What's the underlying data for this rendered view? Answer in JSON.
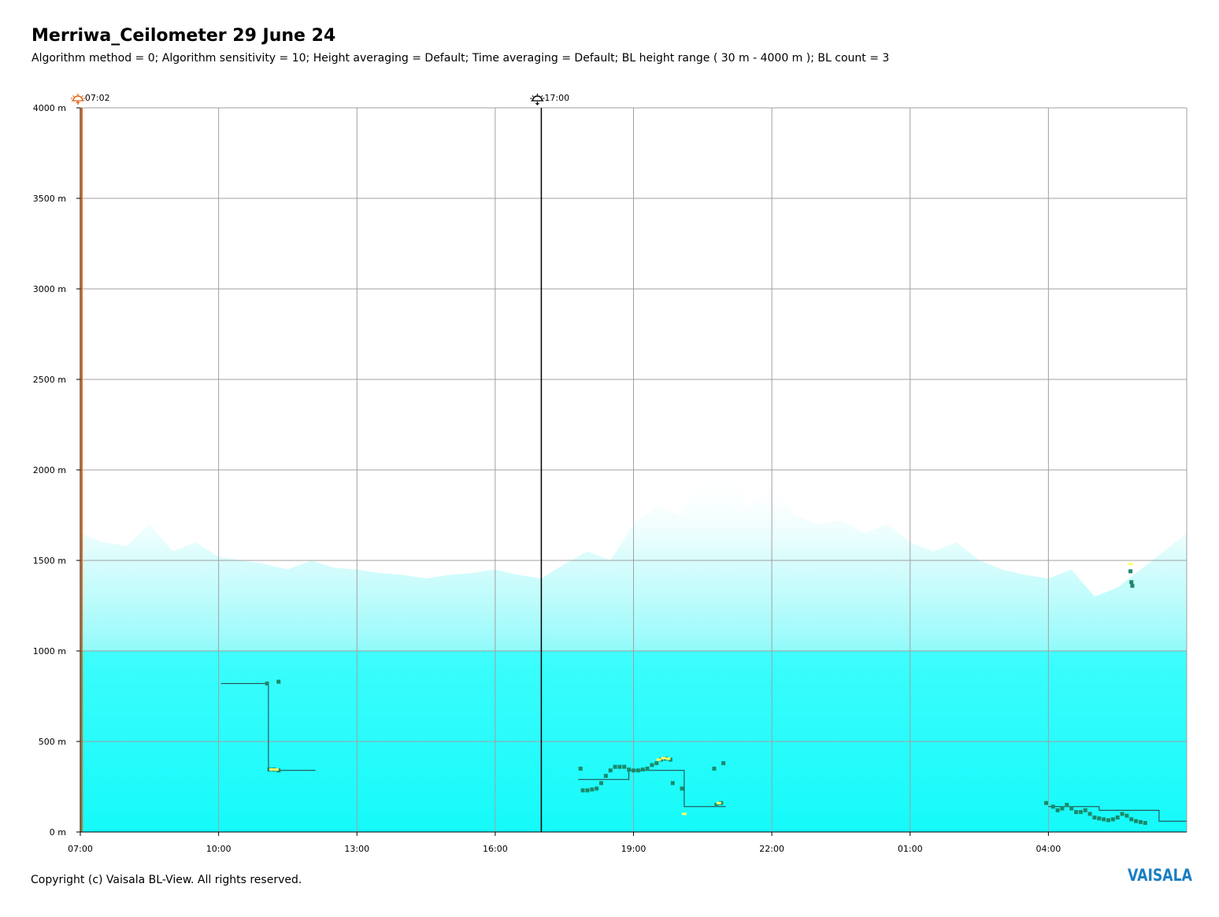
{
  "title": "Merriwa_Ceilometer 29 June 24",
  "subtitle": "Algorithm method = 0; Algorithm sensitivity = 10; Height averaging = Default; Time averaging = Default; BL height range ( 30 m - 4000 m ); BL count = 3",
  "copyright": "Copyright (c) Vaisala BL-View. All rights reserved.",
  "brand": "VAISALA",
  "colors": {
    "backscatter": "#00ffff",
    "grid": "#a0a0a0",
    "sunrise": "#e06010",
    "sunset": "#000000",
    "bl_marker": "#1a8a6a",
    "bl_high": "#ffff66",
    "brand": "#1a7fc1"
  },
  "chart_data": {
    "type": "scatter",
    "ylim": [
      0,
      4000
    ],
    "y_ticks": [
      "0 m",
      "500 m",
      "1000 m",
      "1500 m",
      "2000 m",
      "2500 m",
      "3000 m",
      "3500 m",
      "4000 m"
    ],
    "y_tick_values": [
      0,
      500,
      1000,
      1500,
      2000,
      2500,
      3000,
      3500,
      4000
    ],
    "x_range_hours": [
      7,
      31
    ],
    "x_ticks": [
      "07:00",
      "10:00",
      "13:00",
      "16:00",
      "19:00",
      "22:00",
      "01:00",
      "04:00"
    ],
    "x_tick_hours": [
      7,
      10,
      13,
      16,
      19,
      22,
      25,
      28
    ],
    "grid": true,
    "events": [
      {
        "label": "07:02",
        "hour": 7.033,
        "kind": "sunrise",
        "icon": "sunrise-icon"
      },
      {
        "label": "17:00",
        "hour": 17.0,
        "kind": "sunset",
        "icon": "sunset-icon"
      }
    ],
    "backscatter_top": [
      [
        7.0,
        1650
      ],
      [
        7.5,
        1600
      ],
      [
        8.0,
        1580
      ],
      [
        8.5,
        1700
      ],
      [
        9.0,
        1550
      ],
      [
        9.5,
        1600
      ],
      [
        10.0,
        1520
      ],
      [
        10.5,
        1500
      ],
      [
        11.0,
        1480
      ],
      [
        11.5,
        1450
      ],
      [
        12.0,
        1500
      ],
      [
        12.5,
        1460
      ],
      [
        13.0,
        1450
      ],
      [
        13.5,
        1430
      ],
      [
        14.0,
        1420
      ],
      [
        14.5,
        1400
      ],
      [
        15.0,
        1420
      ],
      [
        15.5,
        1430
      ],
      [
        16.0,
        1450
      ],
      [
        16.5,
        1420
      ],
      [
        17.0,
        1400
      ],
      [
        17.5,
        1480
      ],
      [
        18.0,
        1550
      ],
      [
        18.5,
        1500
      ],
      [
        19.0,
        1700
      ],
      [
        19.5,
        1800
      ],
      [
        20.0,
        1750
      ],
      [
        20.5,
        1950
      ],
      [
        21.0,
        2000
      ],
      [
        21.5,
        1800
      ],
      [
        22.0,
        1900
      ],
      [
        22.5,
        1750
      ],
      [
        23.0,
        1700
      ],
      [
        23.5,
        1720
      ],
      [
        24.0,
        1650
      ],
      [
        24.5,
        1700
      ],
      [
        25.0,
        1600
      ],
      [
        25.5,
        1550
      ],
      [
        26.0,
        1600
      ],
      [
        26.5,
        1500
      ],
      [
        27.0,
        1450
      ],
      [
        27.5,
        1420
      ],
      [
        28.0,
        1400
      ],
      [
        28.5,
        1450
      ],
      [
        29.0,
        1300
      ],
      [
        29.5,
        1350
      ],
      [
        30.0,
        1450
      ],
      [
        30.5,
        1550
      ],
      [
        31.0,
        1650
      ]
    ],
    "boundary_layer_lines": [
      [
        [
          10.05,
          820
        ],
        [
          11.08,
          820
        ],
        [
          11.08,
          340
        ],
        [
          12.1,
          340
        ]
      ],
      [
        [
          17.8,
          290
        ],
        [
          18.9,
          290
        ],
        [
          18.9,
          340
        ],
        [
          20.1,
          340
        ],
        [
          20.1,
          140
        ],
        [
          21.0,
          140
        ]
      ],
      [
        [
          28.0,
          140
        ],
        [
          29.1,
          140
        ],
        [
          29.1,
          120
        ],
        [
          30.4,
          120
        ],
        [
          30.4,
          60
        ],
        [
          31.0,
          60
        ]
      ]
    ],
    "boundary_layer_points": [
      [
        11.05,
        820
      ],
      [
        11.3,
        830
      ],
      [
        11.1,
        345
      ],
      [
        11.2,
        345
      ],
      [
        11.3,
        340
      ],
      [
        17.85,
        350
      ],
      [
        17.9,
        230
      ],
      [
        18.0,
        230
      ],
      [
        18.1,
        235
      ],
      [
        18.2,
        240
      ],
      [
        18.3,
        270
      ],
      [
        18.4,
        310
      ],
      [
        18.5,
        340
      ],
      [
        18.6,
        360
      ],
      [
        18.7,
        360
      ],
      [
        18.8,
        360
      ],
      [
        18.9,
        345
      ],
      [
        19.0,
        340
      ],
      [
        19.1,
        340
      ],
      [
        19.2,
        345
      ],
      [
        19.3,
        350
      ],
      [
        19.4,
        370
      ],
      [
        19.5,
        380
      ],
      [
        19.6,
        400
      ],
      [
        19.7,
        405
      ],
      [
        19.8,
        400
      ],
      [
        19.85,
        270
      ],
      [
        20.05,
        240
      ],
      [
        20.75,
        350
      ],
      [
        20.95,
        380
      ],
      [
        20.8,
        150
      ],
      [
        20.9,
        160
      ],
      [
        27.95,
        160
      ],
      [
        28.1,
        140
      ],
      [
        28.2,
        120
      ],
      [
        28.3,
        130
      ],
      [
        28.4,
        150
      ],
      [
        28.5,
        130
      ],
      [
        28.6,
        110
      ],
      [
        28.7,
        110
      ],
      [
        28.8,
        120
      ],
      [
        28.9,
        100
      ],
      [
        29.0,
        80
      ],
      [
        29.1,
        75
      ],
      [
        29.2,
        70
      ],
      [
        29.3,
        65
      ],
      [
        29.4,
        70
      ],
      [
        29.5,
        80
      ],
      [
        29.6,
        100
      ],
      [
        29.7,
        90
      ],
      [
        29.8,
        70
      ],
      [
        29.9,
        60
      ],
      [
        30.0,
        55
      ],
      [
        30.1,
        50
      ],
      [
        29.78,
        1440
      ],
      [
        29.8,
        1380
      ],
      [
        29.82,
        1360
      ]
    ],
    "boundary_layer_highlights": [
      [
        11.15,
        345
      ],
      [
        11.25,
        345
      ],
      [
        19.55,
        400
      ],
      [
        19.65,
        408
      ],
      [
        19.75,
        405
      ],
      [
        20.1,
        100
      ],
      [
        20.85,
        160
      ],
      [
        29.78,
        1480
      ]
    ]
  }
}
